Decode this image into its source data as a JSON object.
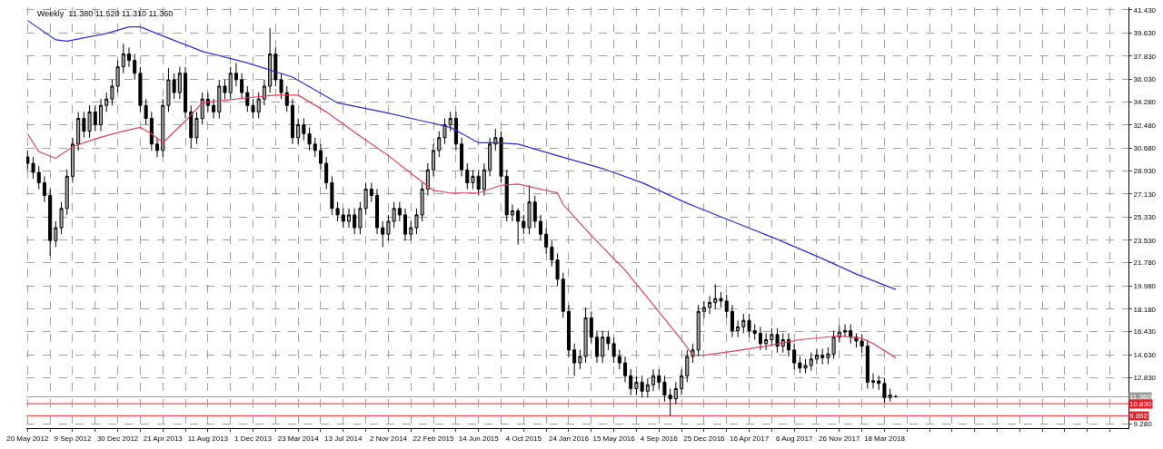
{
  "chart_data": {
    "type": "candlestick",
    "title": "Weekly  11.380 11.520 11.310 11.360",
    "x": [
      "2012-05-20",
      "2012-06-03",
      "2012-06-17",
      "2012-07-01",
      "2012-07-15",
      "2012-07-29",
      "2012-08-12",
      "2012-08-26",
      "2012-09-09",
      "2012-09-23",
      "2012-10-07",
      "2012-10-21",
      "2012-11-04",
      "2012-11-18",
      "2012-12-02",
      "2012-12-16",
      "2012-12-30",
      "2013-01-13",
      "2013-01-27",
      "2013-02-10",
      "2013-02-24",
      "2013-03-10",
      "2013-03-24",
      "2013-04-07",
      "2013-04-21",
      "2013-05-05",
      "2013-05-19",
      "2013-06-02",
      "2013-06-16",
      "2013-06-30",
      "2013-07-14",
      "2013-07-28",
      "2013-08-11",
      "2013-08-25",
      "2013-09-08",
      "2013-09-22",
      "2013-10-06",
      "2013-10-20",
      "2013-11-03",
      "2013-11-17",
      "2013-12-01",
      "2013-12-15",
      "2013-12-29",
      "2014-01-12",
      "2014-01-26",
      "2014-02-09",
      "2014-02-23",
      "2014-03-09",
      "2014-03-23",
      "2014-04-06",
      "2014-04-20",
      "2014-05-04",
      "2014-05-18",
      "2014-06-01",
      "2014-06-15",
      "2014-06-29",
      "2014-07-13",
      "2014-07-27",
      "2014-08-10",
      "2014-08-24",
      "2014-09-07",
      "2014-09-21",
      "2014-10-05",
      "2014-10-19",
      "2014-11-02",
      "2014-11-16",
      "2014-11-30",
      "2014-12-14",
      "2014-12-28",
      "2015-01-11",
      "2015-01-25",
      "2015-02-08",
      "2015-02-22",
      "2015-03-08",
      "2015-03-22",
      "2015-04-05",
      "2015-04-19",
      "2015-05-03",
      "2015-05-17",
      "2015-05-31",
      "2015-06-14",
      "2015-06-28",
      "2015-07-12",
      "2015-07-26",
      "2015-08-09",
      "2015-08-23",
      "2015-09-06",
      "2015-09-20",
      "2015-10-04",
      "2015-10-18",
      "2015-11-01",
      "2015-11-15",
      "2015-11-29",
      "2015-12-13",
      "2015-12-27",
      "2016-01-10",
      "2016-01-24",
      "2016-02-07",
      "2016-02-21",
      "2016-03-06",
      "2016-03-20",
      "2016-04-03",
      "2016-04-17",
      "2016-05-01",
      "2016-05-15",
      "2016-05-29",
      "2016-06-12",
      "2016-06-26",
      "2016-07-10",
      "2016-07-24",
      "2016-08-07",
      "2016-08-21",
      "2016-09-04",
      "2016-09-18",
      "2016-10-02",
      "2016-10-16",
      "2016-10-30",
      "2016-11-13",
      "2016-11-27",
      "2016-12-11",
      "2016-12-25",
      "2017-01-08",
      "2017-01-22",
      "2017-02-05",
      "2017-02-19",
      "2017-03-05",
      "2017-03-19",
      "2017-04-02",
      "2017-04-16",
      "2017-04-30",
      "2017-05-14",
      "2017-05-28",
      "2017-06-11",
      "2017-06-25",
      "2017-07-09",
      "2017-07-23",
      "2017-08-06",
      "2017-08-20",
      "2017-09-03",
      "2017-09-17",
      "2017-10-01",
      "2017-10-15",
      "2017-10-29",
      "2017-11-12",
      "2017-11-26",
      "2017-12-10",
      "2017-12-24",
      "2018-01-07",
      "2018-01-21",
      "2018-02-04",
      "2018-02-18",
      "2018-03-04",
      "2018-03-18",
      "2018-04-01",
      "2018-04-15"
    ],
    "ohlc": [
      [
        30.0,
        30.5,
        29.0,
        29.5
      ],
      [
        29.5,
        30.0,
        28.3,
        28.8
      ],
      [
        28.8,
        29.3,
        27.5,
        28.0
      ],
      [
        28.0,
        28.5,
        26.5,
        27.0
      ],
      [
        27.0,
        27.5,
        22.3,
        23.5
      ],
      [
        23.5,
        25.0,
        23.0,
        24.5
      ],
      [
        24.5,
        26.5,
        24.0,
        26.0
      ],
      [
        26.0,
        29.0,
        25.5,
        28.5
      ],
      [
        28.5,
        31.5,
        28.0,
        31.0
      ],
      [
        31.0,
        33.5,
        30.5,
        33.0
      ],
      [
        33.0,
        33.5,
        31.5,
        32.0
      ],
      [
        32.0,
        34.0,
        31.5,
        33.5
      ],
      [
        33.5,
        34.0,
        32.0,
        32.5
      ],
      [
        32.5,
        34.5,
        32.0,
        34.0
      ],
      [
        34.0,
        35.0,
        33.5,
        34.5
      ],
      [
        34.5,
        36.0,
        34.0,
        35.5
      ],
      [
        35.5,
        37.5,
        35.0,
        37.0
      ],
      [
        37.0,
        38.8,
        36.5,
        38.0
      ],
      [
        38.0,
        38.5,
        37.0,
        37.5
      ],
      [
        37.5,
        38.0,
        36.0,
        36.5
      ],
      [
        36.5,
        37.0,
        33.5,
        34.0
      ],
      [
        34.0,
        34.5,
        32.5,
        33.0
      ],
      [
        33.0,
        33.5,
        30.5,
        31.0
      ],
      [
        31.0,
        31.5,
        30.0,
        30.5
      ],
      [
        30.5,
        34.5,
        30.0,
        34.0
      ],
      [
        34.0,
        36.9,
        33.5,
        36.0
      ],
      [
        36.0,
        36.5,
        34.5,
        35.0
      ],
      [
        35.0,
        37.0,
        34.5,
        36.5
      ],
      [
        36.5,
        37.0,
        33.0,
        33.5
      ],
      [
        33.5,
        34.0,
        30.7,
        31.5
      ],
      [
        31.5,
        33.5,
        31.0,
        33.0
      ],
      [
        33.0,
        35.0,
        32.5,
        34.5
      ],
      [
        34.5,
        35.0,
        33.5,
        34.0
      ],
      [
        34.0,
        34.5,
        33.0,
        33.5
      ],
      [
        33.5,
        36.0,
        33.0,
        35.5
      ],
      [
        35.5,
        36.0,
        34.5,
        35.0
      ],
      [
        35.0,
        37.0,
        34.5,
        36.5
      ],
      [
        36.5,
        37.3,
        35.5,
        36.0
      ],
      [
        36.0,
        36.5,
        34.5,
        35.0
      ],
      [
        35.0,
        35.5,
        33.5,
        34.0
      ],
      [
        34.0,
        34.5,
        33.0,
        33.5
      ],
      [
        33.5,
        35.0,
        33.0,
        34.5
      ],
      [
        34.5,
        36.0,
        34.0,
        35.5
      ],
      [
        35.5,
        40.0,
        35.0,
        38.0
      ],
      [
        38.0,
        38.5,
        35.5,
        36.0
      ],
      [
        36.0,
        36.5,
        34.5,
        35.0
      ],
      [
        35.0,
        35.5,
        33.5,
        34.0
      ],
      [
        34.0,
        34.5,
        31.0,
        31.5
      ],
      [
        31.5,
        33.0,
        31.0,
        32.5
      ],
      [
        32.5,
        33.0,
        31.3,
        31.8
      ],
      [
        31.8,
        32.3,
        30.5,
        31.0
      ],
      [
        31.0,
        31.5,
        30.0,
        30.5
      ],
      [
        30.5,
        31.0,
        29.0,
        29.5
      ],
      [
        29.5,
        30.0,
        27.5,
        28.0
      ],
      [
        28.0,
        28.5,
        25.5,
        26.0
      ],
      [
        26.0,
        26.5,
        25.0,
        25.5
      ],
      [
        25.5,
        26.0,
        24.5,
        25.0
      ],
      [
        25.0,
        26.0,
        24.5,
        25.5
      ],
      [
        25.5,
        26.0,
        24.0,
        24.5
      ],
      [
        24.5,
        26.5,
        24.0,
        26.0
      ],
      [
        26.0,
        28.0,
        25.5,
        27.5
      ],
      [
        27.5,
        28.0,
        26.5,
        27.0
      ],
      [
        27.0,
        27.5,
        24.0,
        24.5
      ],
      [
        24.5,
        25.0,
        23.0,
        24.0
      ],
      [
        24.0,
        25.5,
        23.5,
        25.0
      ],
      [
        25.0,
        26.5,
        24.5,
        26.0
      ],
      [
        26.0,
        26.5,
        25.0,
        25.5
      ],
      [
        25.5,
        26.0,
        23.5,
        24.0
      ],
      [
        24.0,
        25.0,
        23.5,
        24.5
      ],
      [
        24.5,
        26.0,
        24.0,
        25.5
      ],
      [
        25.5,
        28.0,
        25.0,
        27.5
      ],
      [
        27.5,
        29.5,
        27.0,
        29.0
      ],
      [
        29.0,
        31.0,
        28.5,
        30.5
      ],
      [
        30.5,
        32.0,
        30.0,
        31.5
      ],
      [
        31.5,
        33.0,
        31.0,
        32.5
      ],
      [
        32.5,
        33.5,
        32.0,
        33.0
      ],
      [
        33.0,
        33.5,
        30.5,
        31.0
      ],
      [
        31.0,
        31.5,
        28.5,
        29.0
      ],
      [
        29.0,
        29.5,
        27.5,
        28.0
      ],
      [
        28.0,
        29.0,
        27.5,
        28.5
      ],
      [
        28.5,
        29.0,
        27.0,
        27.5
      ],
      [
        27.5,
        29.5,
        27.0,
        29.0
      ],
      [
        29.0,
        31.5,
        28.5,
        31.0
      ],
      [
        31.0,
        32.2,
        30.5,
        31.5
      ],
      [
        31.5,
        32.0,
        28.0,
        28.5
      ],
      [
        28.5,
        29.0,
        25.0,
        25.5
      ],
      [
        25.5,
        26.3,
        25.0,
        25.8
      ],
      [
        25.8,
        26.0,
        23.2,
        25.0
      ],
      [
        25.0,
        25.5,
        24.0,
        24.5
      ],
      [
        24.5,
        27.8,
        24.0,
        26.5
      ],
      [
        26.5,
        27.0,
        24.5,
        25.0
      ],
      [
        25.0,
        25.5,
        23.5,
        24.0
      ],
      [
        24.0,
        24.5,
        22.5,
        23.0
      ],
      [
        23.0,
        23.5,
        21.5,
        22.0
      ],
      [
        22.0,
        22.5,
        20.0,
        20.5
      ],
      [
        20.5,
        21.0,
        17.5,
        18.0
      ],
      [
        18.0,
        18.5,
        14.5,
        15.0
      ],
      [
        15.0,
        15.5,
        13.0,
        14.0
      ],
      [
        14.0,
        15.0,
        13.5,
        14.5
      ],
      [
        14.5,
        18.3,
        14.0,
        17.5
      ],
      [
        17.5,
        18.0,
        15.5,
        16.0
      ],
      [
        16.0,
        16.5,
        14.0,
        14.5
      ],
      [
        14.5,
        16.5,
        14.0,
        16.0
      ],
      [
        16.0,
        16.5,
        15.0,
        15.5
      ],
      [
        15.5,
        16.0,
        14.0,
        14.5
      ],
      [
        14.5,
        15.0,
        13.5,
        14.0
      ],
      [
        14.0,
        14.5,
        12.5,
        13.0
      ],
      [
        13.0,
        13.5,
        11.5,
        12.0
      ],
      [
        12.0,
        13.0,
        11.5,
        12.5
      ],
      [
        12.5,
        13.0,
        11.3,
        11.8
      ],
      [
        11.8,
        12.8,
        11.3,
        12.3
      ],
      [
        12.3,
        13.5,
        11.8,
        13.0
      ],
      [
        13.0,
        13.5,
        12.0,
        12.5
      ],
      [
        12.5,
        13.0,
        11.0,
        11.5
      ],
      [
        11.5,
        12.0,
        9.9,
        11.2
      ],
      [
        11.2,
        12.5,
        10.8,
        12.0
      ],
      [
        12.0,
        13.5,
        11.5,
        13.0
      ],
      [
        13.0,
        15.0,
        12.5,
        14.5
      ],
      [
        14.5,
        15.5,
        14.0,
        15.0
      ],
      [
        15.0,
        18.5,
        14.5,
        18.0
      ],
      [
        18.0,
        18.8,
        17.5,
        18.3
      ],
      [
        18.3,
        19.2,
        17.8,
        18.7
      ],
      [
        18.7,
        20.1,
        18.2,
        19.0
      ],
      [
        19.0,
        19.5,
        18.3,
        18.8
      ],
      [
        18.8,
        19.3,
        17.5,
        18.0
      ],
      [
        18.0,
        18.5,
        16.0,
        16.5
      ],
      [
        16.5,
        17.3,
        16.0,
        16.8
      ],
      [
        16.8,
        17.8,
        16.3,
        17.3
      ],
      [
        17.3,
        17.8,
        16.0,
        16.5
      ],
      [
        16.5,
        17.0,
        15.8,
        16.3
      ],
      [
        16.3,
        16.8,
        15.0,
        15.5
      ],
      [
        15.5,
        16.3,
        15.0,
        15.8
      ],
      [
        15.8,
        16.7,
        15.3,
        16.2
      ],
      [
        16.2,
        16.7,
        14.8,
        15.3
      ],
      [
        15.3,
        16.3,
        14.8,
        15.8
      ],
      [
        15.8,
        16.3,
        14.5,
        15.0
      ],
      [
        15.0,
        15.5,
        13.5,
        14.0
      ],
      [
        14.0,
        14.5,
        13.2,
        13.6
      ],
      [
        13.6,
        14.3,
        13.2,
        13.8
      ],
      [
        13.8,
        14.8,
        13.4,
        14.3
      ],
      [
        14.3,
        15.1,
        13.9,
        14.6
      ],
      [
        14.6,
        15.1,
        13.9,
        14.4
      ],
      [
        14.4,
        15.2,
        13.9,
        14.7
      ],
      [
        14.7,
        16.5,
        14.3,
        16.0
      ],
      [
        16.0,
        16.9,
        15.6,
        16.4
      ],
      [
        16.4,
        17.0,
        16.0,
        16.5
      ],
      [
        16.5,
        17.0,
        15.5,
        16.0
      ],
      [
        16.0,
        16.3,
        15.2,
        15.7
      ],
      [
        15.7,
        16.2,
        14.8,
        15.3
      ],
      [
        15.3,
        15.8,
        12.0,
        12.5
      ],
      [
        12.5,
        13.2,
        12.0,
        12.6
      ],
      [
        12.6,
        13.0,
        11.9,
        12.4
      ],
      [
        12.4,
        12.8,
        10.9,
        11.3
      ],
      [
        11.3,
        12.0,
        11.0,
        11.5
      ],
      [
        11.38,
        11.52,
        11.31,
        11.36
      ]
    ],
    "series": [
      {
        "type": "line",
        "color": "#2b2bd0",
        "x": [
          "2012-05-20",
          "2012-07-29",
          "2012-08-26",
          "2012-12-02",
          "2013-01-27",
          "2013-02-24",
          "2013-04-21",
          "2013-07-28",
          "2013-11-17",
          "2014-03-09",
          "2014-06-29",
          "2014-10-19",
          "2015-01-25",
          "2015-04-05",
          "2015-06-14",
          "2015-07-26",
          "2015-09-20",
          "2015-12-27",
          "2016-04-17",
          "2016-07-24",
          "2016-11-13",
          "2017-03-05",
          "2017-06-25",
          "2017-10-15",
          "2018-01-07",
          "2018-04-15"
        ],
        "values": [
          40.6,
          39.1,
          39.0,
          39.6,
          40.1,
          40.1,
          39.4,
          38.2,
          37.3,
          36.2,
          34.2,
          33.5,
          32.8,
          32.3,
          31.1,
          31.1,
          31.0,
          30.1,
          29.1,
          28.0,
          26.4,
          25.0,
          23.6,
          22.1,
          20.9,
          19.7
        ]
      },
      {
        "type": "line",
        "color": "#e0405a",
        "x": [
          "2012-05-20",
          "2012-06-17",
          "2012-07-29",
          "2012-09-09",
          "2012-11-04",
          "2012-12-30",
          "2013-02-24",
          "2013-03-24",
          "2013-04-21",
          "2013-06-16",
          "2013-07-28",
          "2013-11-17",
          "2014-01-26",
          "2014-03-23",
          "2014-06-01",
          "2014-08-24",
          "2014-11-02",
          "2015-01-11",
          "2015-02-22",
          "2015-04-05",
          "2015-06-14",
          "2015-08-09",
          "2015-09-20",
          "2015-12-27",
          "2016-01-10",
          "2016-03-20",
          "2016-06-12",
          "2016-08-21",
          "2016-10-30",
          "2016-11-27",
          "2016-12-25",
          "2017-03-05",
          "2017-05-28",
          "2017-08-20",
          "2017-11-26",
          "2018-01-21",
          "2018-02-18",
          "2018-04-15"
        ],
        "values": [
          31.8,
          30.4,
          29.9,
          30.8,
          31.4,
          31.9,
          32.3,
          31.8,
          31.1,
          32.8,
          34.2,
          34.6,
          34.8,
          34.8,
          33.5,
          31.6,
          30.1,
          28.4,
          27.4,
          27.2,
          27.2,
          27.8,
          27.9,
          27.2,
          26.3,
          23.9,
          21.2,
          18.5,
          15.8,
          14.6,
          14.6,
          14.9,
          15.3,
          15.8,
          16.1,
          15.9,
          15.5,
          14.4
        ]
      }
    ],
    "xlim": [
      "2012-05-17",
      "2019-11-14"
    ],
    "xticks": [
      {
        "value": "2012-05-20",
        "label": "20 May 2012"
      },
      {
        "value": "2012-07-15",
        "label": null
      },
      {
        "value": "2012-09-09",
        "label": "9 Sep 2012"
      },
      {
        "value": "2012-11-04",
        "label": null
      },
      {
        "value": "2012-12-30",
        "label": "30 Dec 2012"
      },
      {
        "value": "2013-02-24",
        "label": null
      },
      {
        "value": "2013-04-21",
        "label": "21 Apr 2013"
      },
      {
        "value": "2013-06-16",
        "label": null
      },
      {
        "value": "2013-08-11",
        "label": "11 Aug 2013"
      },
      {
        "value": "2013-10-06",
        "label": null
      },
      {
        "value": "2013-12-01",
        "label": "1 Dec 2013"
      },
      {
        "value": "2014-01-26",
        "label": null
      },
      {
        "value": "2014-03-23",
        "label": "23 Mar 2014"
      },
      {
        "value": "2014-05-18",
        "label": null
      },
      {
        "value": "2014-07-13",
        "label": "13 Jul 2014"
      },
      {
        "value": "2014-09-07",
        "label": null
      },
      {
        "value": "2014-11-02",
        "label": "2 Nov 2014"
      },
      {
        "value": "2014-12-28",
        "label": null
      },
      {
        "value": "2015-02-22",
        "label": "22 Feb 2015"
      },
      {
        "value": "2015-04-19",
        "label": null
      },
      {
        "value": "2015-06-14",
        "label": "14 Jun 2015"
      },
      {
        "value": "2015-08-09",
        "label": null
      },
      {
        "value": "2015-10-04",
        "label": "4 Oct 2015"
      },
      {
        "value": "2015-11-29",
        "label": null
      },
      {
        "value": "2016-01-24",
        "label": "24 Jan 2016"
      },
      {
        "value": "2016-03-20",
        "label": null
      },
      {
        "value": "2016-05-15",
        "label": "15 May 2016"
      },
      {
        "value": "2016-07-10",
        "label": null
      },
      {
        "value": "2016-09-04",
        "label": "4 Sep 2016"
      },
      {
        "value": "2016-10-30",
        "label": null
      },
      {
        "value": "2016-12-25",
        "label": "25 Dec 2016"
      },
      {
        "value": "2017-02-19",
        "label": null
      },
      {
        "value": "2017-04-16",
        "label": "16 Apr 2017"
      },
      {
        "value": "2017-06-11",
        "label": null
      },
      {
        "value": "2017-08-06",
        "label": "6 Aug 2017"
      },
      {
        "value": "2017-10-01",
        "label": null
      },
      {
        "value": "2017-11-26",
        "label": "26 Nov 2017"
      },
      {
        "value": "2018-01-21",
        "label": null
      },
      {
        "value": "2018-03-18",
        "label": "18 Mar 2018"
      },
      {
        "value": "2018-05-13",
        "label": null
      },
      {
        "value": "2018-07-08",
        "label": null
      },
      {
        "value": "2018-09-02",
        "label": null
      },
      {
        "value": "2018-10-28",
        "label": null
      },
      {
        "value": "2018-12-23",
        "label": null
      },
      {
        "value": "2019-02-17",
        "label": null
      },
      {
        "value": "2019-04-14",
        "label": null
      },
      {
        "value": "2019-06-09",
        "label": null
      },
      {
        "value": "2019-08-04",
        "label": null
      },
      {
        "value": "2019-09-29",
        "label": null
      }
    ],
    "ylim": [
      8.93,
      41.63
    ],
    "yticks": [
      {
        "value": 9.28,
        "label": "9.280"
      },
      {
        "value": 12.83,
        "label": "12.830"
      },
      {
        "value": 14.63,
        "label": "14.630"
      },
      {
        "value": 16.43,
        "label": "16.430"
      },
      {
        "value": 18.18,
        "label": "18.180"
      },
      {
        "value": 19.98,
        "label": "19.980"
      },
      {
        "value": 21.78,
        "label": "21.780"
      },
      {
        "value": 23.53,
        "label": "23.530"
      },
      {
        "value": 25.33,
        "label": "25.330"
      },
      {
        "value": 27.13,
        "label": "27.130"
      },
      {
        "value": 28.93,
        "label": "28.930"
      },
      {
        "value": 30.68,
        "label": "30.680"
      },
      {
        "value": 32.48,
        "label": "32.480"
      },
      {
        "value": 34.28,
        "label": "34.280"
      },
      {
        "value": 36.03,
        "label": "36.030"
      },
      {
        "value": 37.83,
        "label": "37.830"
      },
      {
        "value": 39.63,
        "label": "39.630"
      },
      {
        "value": 41.43,
        "label": "41.430"
      }
    ],
    "grid": true,
    "ref_lines": [
      {
        "axis": "y",
        "value": 11.36,
        "label": "11.360",
        "color": "#9a9a9a"
      },
      {
        "axis": "y",
        "value": 10.83,
        "label": "10.830",
        "color": "#e8202a"
      },
      {
        "axis": "y",
        "value": 9.892,
        "label": "9.892",
        "color": "#e8202a"
      }
    ]
  }
}
